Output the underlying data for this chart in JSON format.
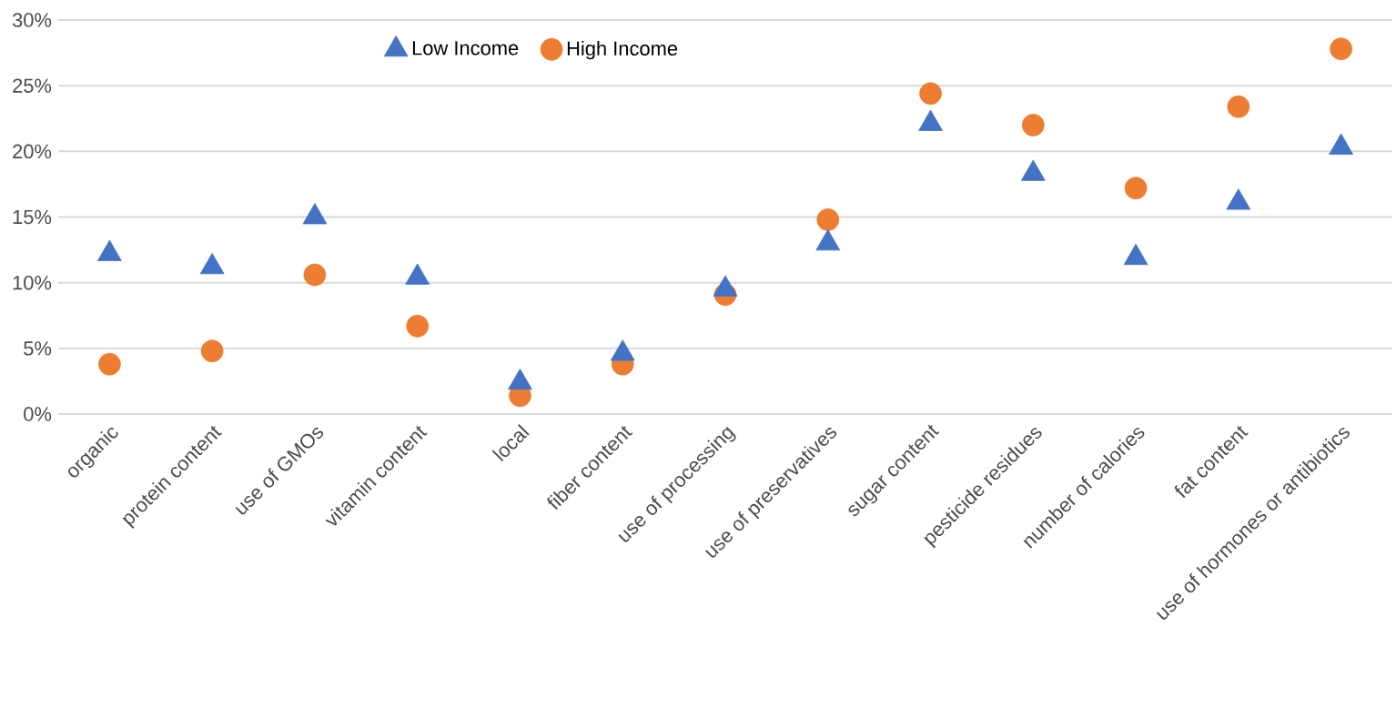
{
  "chart_data": {
    "type": "scatter",
    "categories": [
      "organic",
      "protein content",
      "use of GMOs",
      "vitamin content",
      "local",
      "fiber content",
      "use of processing",
      "use of preservatives",
      "sugar content",
      "pesticide residues",
      "number of calories",
      "fat content",
      "use of hormones or antibiotics"
    ],
    "series": [
      {
        "name": "Low Income",
        "color": "#4472c4",
        "marker": "triangle",
        "values": [
          12.2,
          11.2,
          15.0,
          10.4,
          2.4,
          4.6,
          9.5,
          13.0,
          22.1,
          18.3,
          11.9,
          16.1,
          20.3
        ]
      },
      {
        "name": "High Income",
        "color": "#ed7d31",
        "marker": "circle",
        "values": [
          3.8,
          4.8,
          10.6,
          6.7,
          1.4,
          3.8,
          9.1,
          14.8,
          24.4,
          22.0,
          17.2,
          23.4,
          27.8
        ]
      }
    ],
    "ylim": [
      0,
      30
    ],
    "yticks": [
      {
        "value": 0,
        "label": "0%"
      },
      {
        "value": 5,
        "label": "5%"
      },
      {
        "value": 10,
        "label": "10%"
      },
      {
        "value": 15,
        "label": "15%"
      },
      {
        "value": 20,
        "label": "20%"
      },
      {
        "value": 25,
        "label": "25%"
      },
      {
        "value": 30,
        "label": "30%"
      }
    ],
    "grid": "y",
    "legend": "top left"
  }
}
